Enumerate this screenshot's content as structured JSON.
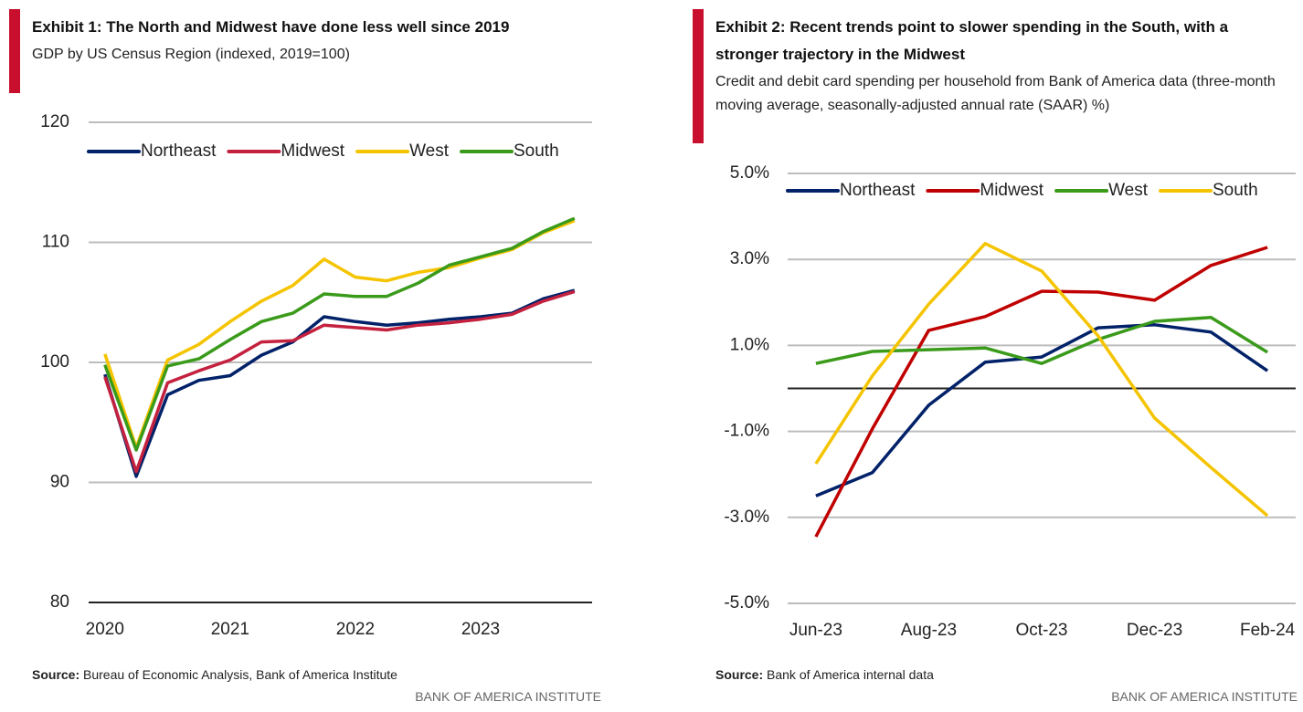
{
  "chart_data": [
    {
      "type": "line",
      "title": "Exhibit 1: The North and Midwest have done less well since 2019",
      "subtitle": "GDP by US Census Region (indexed, 2019=100)",
      "x": [
        2020,
        2020.25,
        2020.5,
        2020.75,
        2021,
        2021.25,
        2021.5,
        2021.75,
        2022,
        2022.25,
        2022.5,
        2022.75,
        2023,
        2023.25,
        2023.5,
        2023.75
      ],
      "xlim": [
        2019.87,
        2023.89
      ],
      "xticks": [
        2020,
        2021,
        2022,
        2023
      ],
      "ylim": [
        80,
        120
      ],
      "yticks": [
        80,
        90,
        100,
        110,
        120
      ],
      "grid": true,
      "series": [
        {
          "name": "Northeast",
          "color": "#012169",
          "values": [
            99.0,
            90.5,
            97.3,
            98.5,
            98.9,
            100.6,
            101.7,
            103.8,
            103.4,
            103.1,
            103.3,
            103.6,
            103.8,
            104.1,
            105.3,
            106.0
          ]
        },
        {
          "name": "Midwest",
          "color": "#c4213f",
          "values": [
            98.8,
            90.9,
            98.3,
            99.3,
            100.2,
            101.7,
            101.8,
            103.1,
            102.9,
            102.7,
            103.1,
            103.3,
            103.6,
            104.0,
            105.1,
            105.9
          ]
        },
        {
          "name": "West",
          "color": "#f5c400",
          "values": [
            100.7,
            92.9,
            100.2,
            101.5,
            103.4,
            105.1,
            106.4,
            108.6,
            107.1,
            106.8,
            107.5,
            107.9,
            108.7,
            109.4,
            110.8,
            111.8
          ]
        },
        {
          "name": "South",
          "color": "#3a9a1a",
          "values": [
            99.8,
            92.7,
            99.7,
            100.3,
            101.9,
            103.4,
            104.1,
            105.7,
            105.5,
            105.5,
            106.6,
            108.1,
            108.8,
            109.5,
            110.9,
            112.0
          ]
        }
      ],
      "source_label": "Source:",
      "source": "Bureau of Economic Analysis, Bank of America Institute",
      "footer": "BANK OF AMERICA INSTITUTE"
    },
    {
      "type": "line",
      "title": "Exhibit 2: Recent trends point to slower spending in the South, with a stronger trajectory in the Midwest",
      "subtitle": "Credit and debit card spending per household from Bank of America data (three-month moving average, seasonally-adjusted annual rate (SAAR) %)",
      "categories": [
        "Jun-23",
        null,
        "Aug-23",
        null,
        "Oct-23",
        null,
        "Dec-23",
        null,
        "Feb-24"
      ],
      "ylim": [
        -5,
        5
      ],
      "yticks": [
        {
          "value": -5,
          "label": "-5.0%"
        },
        {
          "value": -3,
          "label": "-3.0%"
        },
        {
          "value": -1,
          "label": "-1.0%"
        },
        {
          "value": 1,
          "label": "1.0%"
        },
        {
          "value": 3,
          "label": "3.0%"
        },
        {
          "value": 5,
          "label": "5.0%"
        }
      ],
      "grid": true,
      "series": [
        {
          "name": "Northeast",
          "color": "#012169",
          "values": [
            -2.5,
            -1.96,
            -0.39,
            0.61,
            0.73,
            1.41,
            1.48,
            1.31,
            0.41
          ]
        },
        {
          "name": "Midwest",
          "color": "#c00000",
          "values": [
            -3.45,
            -0.94,
            1.35,
            1.67,
            2.26,
            2.24,
            2.05,
            2.86,
            3.28
          ]
        },
        {
          "name": "West",
          "color": "#3a9a1a",
          "values": [
            0.58,
            0.86,
            0.9,
            0.94,
            0.58,
            1.14,
            1.56,
            1.65,
            0.84
          ]
        },
        {
          "name": "South",
          "color": "#f5c400",
          "values": [
            -1.75,
            0.29,
            1.96,
            3.37,
            2.73,
            1.22,
            -0.69,
            -1.84,
            -2.96
          ]
        }
      ],
      "source_label": "Source:",
      "source": "Bank of America internal data",
      "footer": "BANK OF AMERICA INSTITUTE"
    }
  ]
}
